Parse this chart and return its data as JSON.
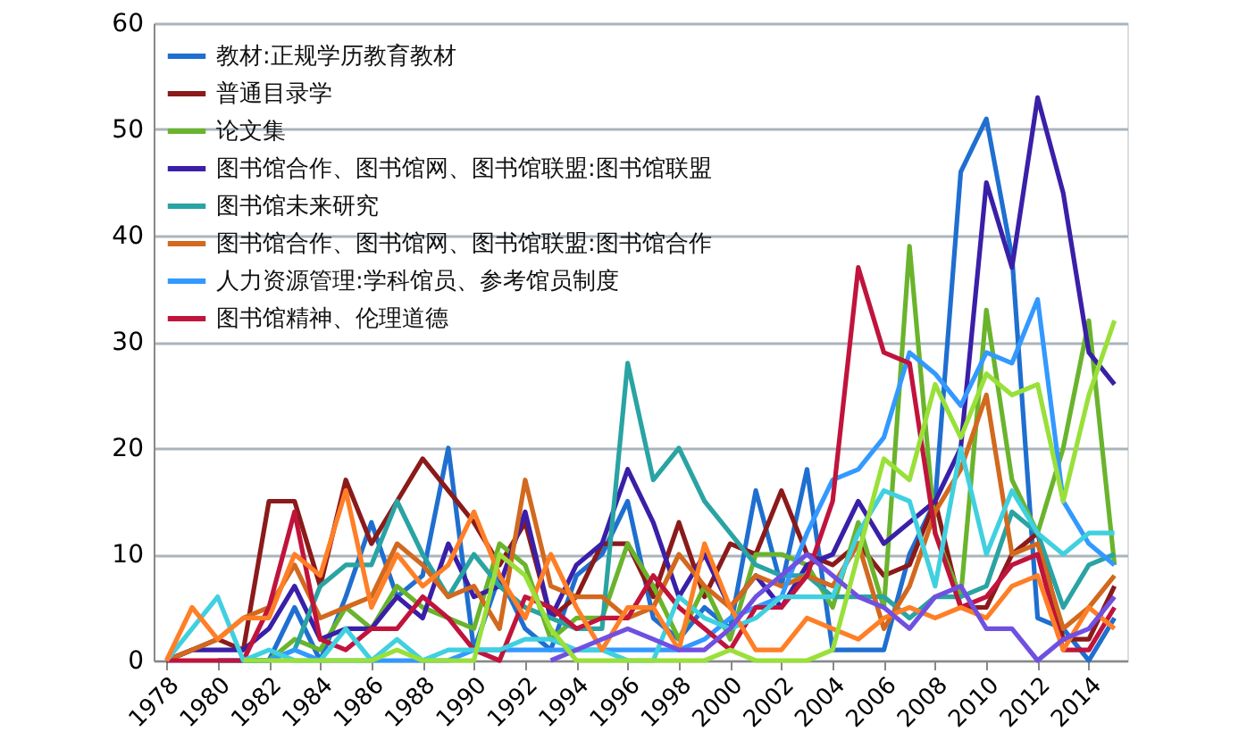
{
  "chart_data": {
    "type": "line",
    "x": [
      1978,
      1979,
      1980,
      1981,
      1982,
      1983,
      1984,
      1985,
      1986,
      1987,
      1988,
      1989,
      1990,
      1991,
      1992,
      1993,
      1994,
      1995,
      1996,
      1997,
      1998,
      1999,
      2000,
      2001,
      2002,
      2003,
      2004,
      2005,
      2006,
      2007,
      2008,
      2009,
      2010,
      2011,
      2012,
      2013,
      2014,
      2015
    ],
    "xlim": [
      1977.5,
      2015.5
    ],
    "xticks": [
      1978,
      1980,
      1982,
      1984,
      1986,
      1988,
      1990,
      1992,
      1994,
      1996,
      1998,
      2000,
      2002,
      2004,
      2006,
      2008,
      2010,
      2012,
      2014
    ],
    "ylim": [
      0,
      60
    ],
    "yticks": [
      0,
      10,
      20,
      30,
      40,
      50,
      60
    ],
    "grid": "y",
    "legend": "top left",
    "marker": "none",
    "line_style": "solid",
    "series": [
      {
        "name": "教材:正规学历教育教材",
        "color": "#1f6fd0",
        "values": [
          null,
          null,
          null,
          0,
          0,
          5,
          0,
          6,
          13,
          6,
          8,
          20,
          1,
          8,
          3,
          1,
          8,
          10,
          15,
          4,
          2,
          5,
          3,
          16,
          7,
          18,
          1,
          1,
          1,
          10,
          15,
          46,
          51,
          38,
          4,
          3,
          0,
          4
        ]
      },
      {
        "name": "普通目录学",
        "color": "#8b1a1a",
        "values": [
          0,
          1,
          2,
          1,
          15,
          15,
          7,
          17,
          11,
          15,
          19,
          16,
          13,
          9,
          13,
          4,
          6,
          11,
          11,
          6,
          13,
          6,
          11,
          10,
          16,
          10,
          9,
          11,
          8,
          9,
          15,
          5,
          5,
          10,
          12,
          2,
          2,
          7
        ]
      },
      {
        "name": "论文集",
        "color": "#6ab42d",
        "values": [
          null,
          null,
          null,
          0,
          0,
          2,
          1,
          5,
          3,
          7,
          5,
          4,
          3,
          11,
          9,
          2,
          4,
          4,
          11,
          7,
          2,
          7,
          2,
          10,
          10,
          9,
          5,
          13,
          5,
          39,
          12,
          6,
          33,
          17,
          12,
          20,
          32,
          9
        ]
      },
      {
        "name": "图书馆合作、图书馆网、图书馆联盟:图书馆联盟",
        "color": "#3a1fa8",
        "values": [
          0,
          1,
          1,
          1,
          3,
          7,
          2,
          3,
          3,
          6,
          4,
          11,
          6,
          7,
          14,
          4,
          9,
          11,
          18,
          13,
          6,
          10,
          5,
          8,
          5,
          9,
          10,
          15,
          11,
          13,
          15,
          20,
          45,
          37,
          53,
          44,
          29,
          26
        ]
      },
      {
        "name": "图书馆未来研究",
        "color": "#2aa3a3",
        "values": [
          null,
          null,
          0,
          0,
          0,
          1,
          7,
          9,
          9,
          15,
          10,
          6,
          10,
          7,
          5,
          4,
          3,
          3,
          28,
          17,
          20,
          15,
          12,
          9,
          8,
          8,
          6,
          6,
          6,
          4,
          6,
          6,
          7,
          14,
          12,
          5,
          9,
          10
        ]
      },
      {
        "name": "图书馆合作、图书馆网、图书馆联盟:图书馆合作",
        "color": "#d2691e",
        "values": [
          0,
          1,
          2,
          4,
          5,
          9,
          4,
          5,
          6,
          11,
          9,
          6,
          7,
          3,
          17,
          7,
          6,
          6,
          4,
          5,
          10,
          7,
          5,
          8,
          7,
          8,
          7,
          11,
          3,
          7,
          14,
          18,
          25,
          10,
          11,
          3,
          5,
          8
        ]
      },
      {
        "name": "人力资源管理:学科馆员、参考馆员制度",
        "color": "#3399ff",
        "values": [
          null,
          null,
          0,
          0,
          0,
          1,
          0,
          0,
          0,
          0,
          0,
          0,
          1,
          1,
          1,
          1,
          1,
          1,
          1,
          1,
          1,
          2,
          4,
          5,
          6,
          12,
          17,
          18,
          21,
          29,
          27,
          24,
          29,
          28,
          34,
          15,
          11,
          9
        ]
      },
      {
        "name": "图书馆精神、伦理道德",
        "color": "#c0143c",
        "values": [
          0,
          0,
          0,
          0,
          5,
          14,
          2,
          1,
          3,
          3,
          6,
          4,
          1,
          0,
          6,
          5,
          3,
          4,
          4,
          8,
          5,
          3,
          1,
          5,
          5,
          8,
          15,
          37,
          29,
          28,
          12,
          5,
          6,
          9,
          10,
          1,
          1,
          5
        ]
      },
      {
        "name": null,
        "color": "#40d0e0",
        "values": [
          0,
          3,
          6,
          0,
          1,
          0,
          0,
          3,
          0,
          2,
          0,
          1,
          1,
          1,
          2,
          2,
          1,
          1,
          0,
          0,
          6,
          4,
          3,
          4,
          6,
          6,
          6,
          12,
          16,
          15,
          7,
          20,
          10,
          16,
          12,
          10,
          12,
          12
        ]
      },
      {
        "name": null,
        "color": "#ff7f27",
        "values": [
          0,
          5,
          2,
          4,
          4,
          10,
          8,
          16,
          5,
          10,
          7,
          9,
          14,
          8,
          4,
          10,
          5,
          1,
          5,
          5,
          1,
          11,
          5,
          1,
          1,
          4,
          3,
          2,
          4,
          5,
          4,
          5,
          4,
          7,
          8,
          1,
          5,
          3
        ]
      },
      {
        "name": null,
        "color": "#7050e0",
        "values": [
          null,
          null,
          null,
          null,
          null,
          null,
          null,
          null,
          null,
          null,
          null,
          null,
          null,
          null,
          null,
          0,
          1,
          2,
          3,
          2,
          1,
          1,
          3,
          6,
          8,
          10,
          8,
          6,
          5,
          3,
          6,
          7,
          3,
          3,
          0,
          2,
          3,
          6
        ]
      },
      {
        "name": null,
        "color": "#99e03a",
        "values": [
          null,
          null,
          null,
          0,
          0,
          0,
          0,
          0,
          0,
          1,
          0,
          0,
          0,
          10,
          8,
          3,
          0,
          0,
          0,
          0,
          0,
          0,
          1,
          0,
          0,
          0,
          1,
          10,
          19,
          17,
          26,
          21,
          27,
          25,
          26,
          15,
          25,
          32
        ]
      }
    ]
  }
}
